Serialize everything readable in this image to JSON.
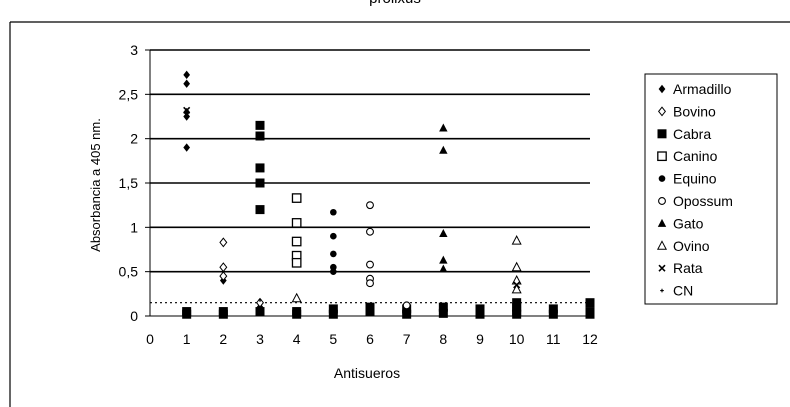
{
  "chart_data": {
    "type": "scatter",
    "title": "prolixus",
    "xlabel": "Antisueros",
    "ylabel": "Absorbancia a 405 nm.",
    "xlim": [
      0,
      12
    ],
    "ylim": [
      0,
      3
    ],
    "x_ticks": [
      "0",
      "1",
      "2",
      "3",
      "4",
      "5",
      "6",
      "7",
      "8",
      "9",
      "10",
      "11",
      "12"
    ],
    "y_ticks": [
      "0",
      "0,5",
      "1",
      "1,5",
      "2",
      "2,5",
      "3"
    ],
    "grid": true,
    "cutoff": 0.15,
    "legend_position": "right",
    "series": [
      {
        "name": "Armadillo",
        "marker": "diamond",
        "points": [
          [
            1,
            2.72
          ],
          [
            1,
            2.62
          ],
          [
            1,
            2.3
          ],
          [
            1,
            2.25
          ],
          [
            1,
            1.9
          ],
          [
            2,
            0.4
          ],
          [
            3,
            0.1
          ],
          [
            10,
            0.05
          ]
        ]
      },
      {
        "name": "Bovino",
        "marker": "diamond-open",
        "points": [
          [
            2,
            0.83
          ],
          [
            2,
            0.55
          ],
          [
            2,
            0.45
          ],
          [
            3,
            0.15
          ]
        ]
      },
      {
        "name": "Cabra",
        "marker": "square",
        "points": [
          [
            1,
            0.05
          ],
          [
            1,
            0.02
          ],
          [
            2,
            0.05
          ],
          [
            2,
            0.02
          ],
          [
            3,
            2.15
          ],
          [
            3,
            2.03
          ],
          [
            3,
            1.67
          ],
          [
            3,
            1.5
          ],
          [
            3,
            1.2
          ],
          [
            3,
            0.05
          ],
          [
            4,
            0.05
          ],
          [
            4,
            0.02
          ],
          [
            5,
            0.08
          ],
          [
            5,
            0.02
          ],
          [
            6,
            0.1
          ],
          [
            6,
            0.05
          ],
          [
            7,
            0.08
          ],
          [
            7,
            0.02
          ],
          [
            8,
            0.1
          ],
          [
            8,
            0.03
          ],
          [
            9,
            0.08
          ],
          [
            9,
            0.02
          ],
          [
            10,
            0.15
          ],
          [
            10,
            0.1
          ],
          [
            10,
            0.05
          ],
          [
            10,
            0.02
          ],
          [
            11,
            0.08
          ],
          [
            11,
            0.02
          ],
          [
            12,
            0.15
          ],
          [
            12,
            0.05
          ],
          [
            12,
            0.02
          ]
        ]
      },
      {
        "name": "Canino",
        "marker": "square-open",
        "points": [
          [
            4,
            1.33
          ],
          [
            4,
            1.05
          ],
          [
            4,
            0.84
          ],
          [
            4,
            0.68
          ],
          [
            4,
            0.6
          ]
        ]
      },
      {
        "name": "Equino",
        "marker": "circle",
        "points": [
          [
            3,
            0.05
          ],
          [
            5,
            1.17
          ],
          [
            5,
            0.9
          ],
          [
            5,
            0.7
          ],
          [
            5,
            0.55
          ],
          [
            5,
            0.5
          ],
          [
            6,
            0.08
          ],
          [
            7,
            0.08
          ],
          [
            10,
            0.08
          ]
        ]
      },
      {
        "name": "Opossum",
        "marker": "circle-open",
        "points": [
          [
            6,
            1.25
          ],
          [
            6,
            0.95
          ],
          [
            6,
            0.58
          ],
          [
            6,
            0.42
          ],
          [
            6,
            0.37
          ],
          [
            7,
            0.12
          ]
        ]
      },
      {
        "name": "Gato",
        "marker": "triangle",
        "points": [
          [
            8,
            2.12
          ],
          [
            8,
            1.87
          ],
          [
            8,
            0.93
          ],
          [
            8,
            0.63
          ],
          [
            8,
            0.53
          ]
        ]
      },
      {
        "name": "Ovino",
        "marker": "triangle-open",
        "points": [
          [
            4,
            0.2
          ],
          [
            10,
            0.85
          ],
          [
            10,
            0.55
          ],
          [
            10,
            0.4
          ],
          [
            10,
            0.3
          ]
        ]
      },
      {
        "name": "Rata",
        "marker": "cross",
        "points": [
          [
            1,
            2.32
          ],
          [
            10,
            0.35
          ]
        ]
      },
      {
        "name": "CN",
        "marker": "dot",
        "points": [
          [
            3,
            0.18
          ],
          [
            9,
            0.05
          ]
        ]
      }
    ]
  }
}
